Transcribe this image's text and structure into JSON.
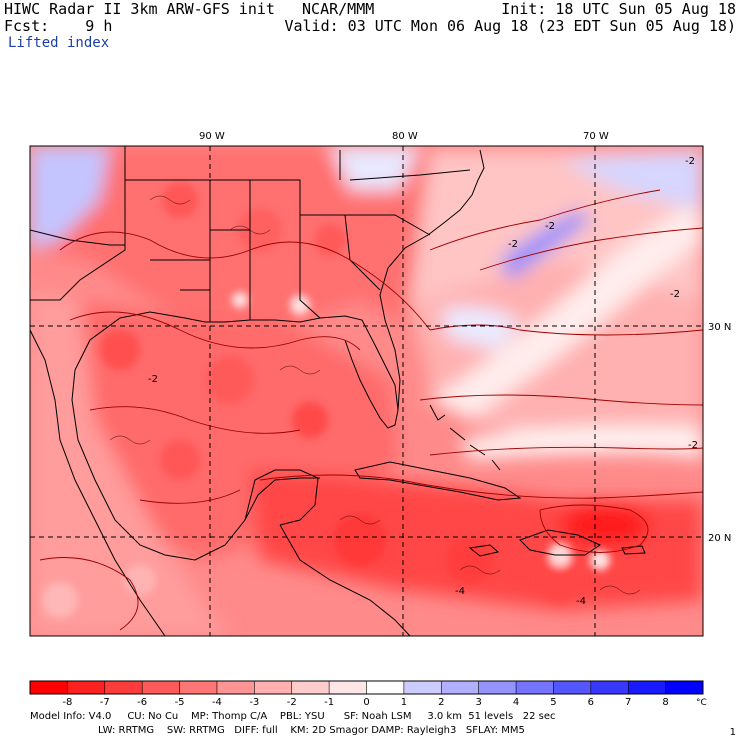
{
  "header": {
    "line1_left": "HIWC Radar II 3km ARW-GFS init   NCAR/MMM",
    "line1_right": "Init: 18 UTC Sun 05 Aug 18",
    "line2_left": "Fcst:    9 h",
    "line2_right": "Valid: 03 UTC Mon 06 Aug 18 (23 EDT Sun 05 Aug 18)",
    "field_name": "Lifted index"
  },
  "longitudes": [
    "90 W",
    "80 W",
    "70 W"
  ],
  "latitudes": [
    "30 N",
    "20 N"
  ],
  "contour_labels": [
    "-2",
    "-2",
    "-2",
    "-2",
    "-2",
    "-2",
    "-4",
    "-4"
  ],
  "colorbar": {
    "ticks": [
      "-8",
      "-7",
      "-6",
      "-5",
      "-4",
      "-3",
      "-2",
      "-1",
      "0",
      "1",
      "2",
      "3",
      "4",
      "5",
      "6",
      "7",
      "8"
    ],
    "unit": "°C",
    "colors": [
      "#ff0000",
      "#ff2020",
      "#ff3c3c",
      "#ff5a5a",
      "#ff7676",
      "#ff9494",
      "#ffb0b0",
      "#ffcccc",
      "#ffe6e6",
      "#ffffff",
      "#ccccff",
      "#b0b0ff",
      "#9494ff",
      "#7474ff",
      "#5656ff",
      "#3838ff",
      "#1a1aff",
      "#0000ff"
    ]
  },
  "footer": {
    "line1": "Model Info: V4.0     CU: No Cu    MP: Thomp C/A    PBL: YSU      SF: Noah LSM     3.0 km  51 levels   22 sec",
    "line2": "LW: RRTMG    SW: RRTMG   DIFF: full    KM: 2D Smagor DAMP: Rayleigh3   SFLAY: MM5"
  },
  "page_number": "1"
}
